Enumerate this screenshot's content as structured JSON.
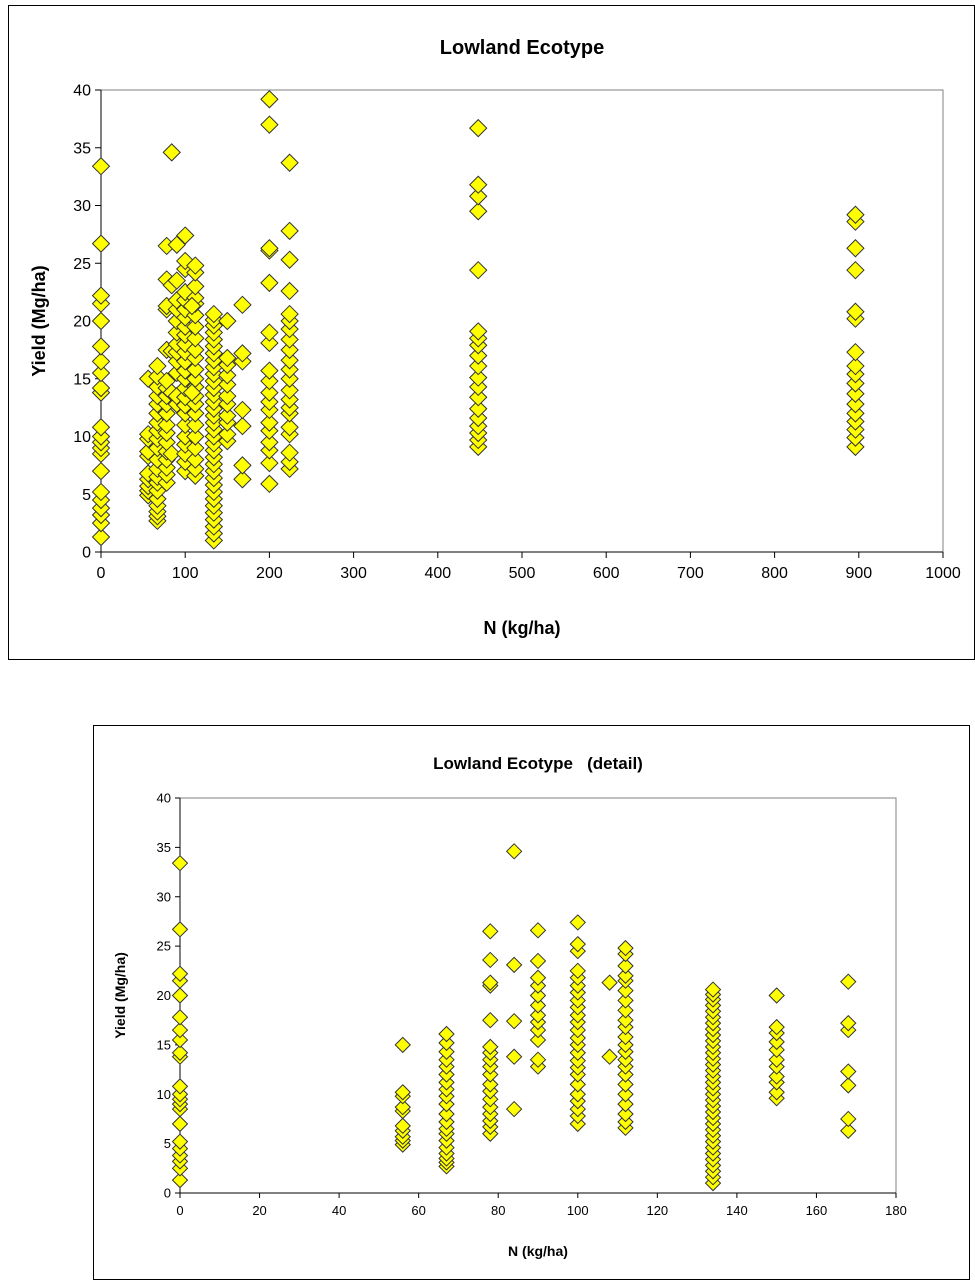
{
  "chart_data": [
    {
      "type": "scatter",
      "title": "Lowland Ecotype",
      "xlabel": "N (kg/ha)",
      "ylabel": "Yield (Mg/ha)",
      "xlim": [
        0,
        1000
      ],
      "ylim": [
        0,
        40
      ],
      "xticks": [
        0,
        100,
        200,
        300,
        400,
        500,
        600,
        700,
        800,
        900,
        1000
      ],
      "yticks": [
        0,
        5,
        10,
        15,
        20,
        25,
        30,
        35,
        40
      ],
      "grid": false,
      "legend": "none",
      "marker_color": "#ffff00",
      "marker_edge": "#333333",
      "groups": [
        {
          "x": 0,
          "y": [
            1.3,
            2.5,
            3.2,
            3.8,
            4.5,
            5.2,
            7.0,
            8.5,
            9.0,
            9.5,
            10.0,
            10.8,
            13.8,
            14.2,
            15.5,
            16.5,
            17.8,
            20.0,
            21.5,
            22.2,
            26.7,
            33.4
          ]
        },
        {
          "x": 56,
          "y": [
            4.9,
            5.3,
            5.7,
            6.3,
            6.8,
            8.3,
            8.7,
            9.8,
            10.2,
            15.0
          ]
        },
        {
          "x": 67,
          "y": [
            2.7,
            3.1,
            3.5,
            4.0,
            4.6,
            5.3,
            6.0,
            6.5,
            7.2,
            8.0,
            9.0,
            9.8,
            10.5,
            11.2,
            12.0,
            12.8,
            13.5,
            14.3,
            15.2,
            16.1
          ]
        },
        {
          "x": 78,
          "y": [
            6.0,
            6.7,
            7.3,
            8.0,
            8.7,
            9.5,
            10.3,
            11.0,
            12.0,
            12.8,
            13.5,
            14.2,
            14.8,
            17.5,
            21.0,
            21.3,
            23.6,
            26.5
          ]
        },
        {
          "x": 84,
          "y": [
            8.5,
            13.8,
            17.4,
            23.1,
            34.6
          ]
        },
        {
          "x": 90,
          "y": [
            12.8,
            13.5,
            15.5,
            16.5,
            17.3,
            18.0,
            19.0,
            20.0,
            21.0,
            21.8,
            23.5,
            26.6
          ]
        },
        {
          "x": 100,
          "y": [
            7.0,
            7.8,
            8.5,
            9.3,
            10.0,
            11.0,
            12.0,
            12.7,
            13.4,
            14.2,
            15.0,
            15.7,
            16.5,
            17.3,
            18.0,
            18.8,
            19.5,
            20.3,
            21.0,
            21.8,
            22.5,
            24.5,
            25.2,
            27.4
          ]
        },
        {
          "x": 112,
          "y": [
            6.6,
            7.2,
            8.0,
            9.0,
            10.0,
            11.0,
            12.0,
            12.8,
            13.5,
            14.3,
            15.0,
            15.8,
            16.8,
            17.5,
            18.5,
            19.5,
            20.5,
            21.5,
            22.0,
            23.0,
            24.2,
            24.8
          ]
        },
        {
          "x": 108,
          "y": [
            13.8,
            21.3
          ]
        },
        {
          "x": 134,
          "y": [
            1.0,
            1.6,
            2.2,
            2.8,
            3.4,
            4.0,
            4.6,
            5.2,
            5.8,
            6.4,
            7.0,
            7.6,
            8.2,
            8.8,
            9.4,
            10.0,
            10.6,
            11.2,
            11.8,
            12.4,
            13.0,
            13.6,
            14.2,
            14.8,
            15.4,
            16.0,
            16.6,
            17.2,
            17.8,
            18.4,
            19.0,
            19.6,
            20.1,
            20.6
          ]
        },
        {
          "x": 150,
          "y": [
            9.6,
            10.2,
            11.2,
            11.8,
            12.8,
            13.5,
            14.5,
            15.3,
            16.2,
            16.8,
            20.0
          ]
        },
        {
          "x": 168,
          "y": [
            6.3,
            7.5,
            10.9,
            12.3,
            16.5,
            17.2,
            21.4
          ]
        },
        {
          "x": 200,
          "y": [
            5.9,
            7.7,
            8.8,
            9.5,
            10.5,
            11.2,
            12.3,
            13.0,
            13.8,
            14.8,
            15.7,
            18.1,
            19.0,
            23.3,
            26.1,
            26.3,
            37.0,
            39.2
          ]
        },
        {
          "x": 224,
          "y": [
            7.2,
            7.8,
            8.6,
            10.2,
            10.8,
            12.0,
            12.5,
            13.2,
            14.0,
            15.0,
            15.8,
            16.6,
            17.5,
            18.4,
            19.3,
            20.0,
            20.6,
            22.6,
            25.3,
            27.8,
            33.7
          ]
        },
        {
          "x": 448,
          "y": [
            9.1,
            9.7,
            10.3,
            10.9,
            11.6,
            12.4,
            13.4,
            14.3,
            15.1,
            16.1,
            17.0,
            17.9,
            18.5,
            19.1,
            24.4,
            29.5,
            30.8,
            31.8,
            36.7
          ]
        },
        {
          "x": 896,
          "y": [
            9.1,
            9.9,
            10.6,
            11.3,
            12.0,
            12.8,
            13.7,
            14.6,
            15.4,
            16.1,
            17.3,
            20.2,
            20.8,
            24.4,
            26.3,
            28.6,
            29.2
          ]
        }
      ]
    },
    {
      "type": "scatter",
      "title": "Lowland Ecotype   (detail)",
      "xlabel": "N (kg/ha)",
      "ylabel": "Yield (Mg/ha)",
      "xlim": [
        0,
        180
      ],
      "ylim": [
        0,
        40
      ],
      "xticks": [
        0,
        20,
        40,
        60,
        80,
        100,
        120,
        140,
        160,
        180
      ],
      "yticks": [
        0,
        5,
        10,
        15,
        20,
        25,
        30,
        35,
        40
      ],
      "grid": false,
      "legend": "none",
      "marker_color": "#ffff00",
      "marker_edge": "#333333",
      "groups": [
        {
          "x": 0,
          "y": [
            1.3,
            2.5,
            3.2,
            3.8,
            4.5,
            5.2,
            7.0,
            8.5,
            9.0,
            9.5,
            10.0,
            10.8,
            13.8,
            14.2,
            15.5,
            16.5,
            17.8,
            20.0,
            21.5,
            22.2,
            26.7,
            33.4
          ]
        },
        {
          "x": 56,
          "y": [
            4.9,
            5.3,
            5.7,
            6.3,
            6.8,
            8.3,
            8.7,
            9.8,
            10.2,
            15.0
          ]
        },
        {
          "x": 67,
          "y": [
            2.7,
            3.1,
            3.5,
            4.0,
            4.6,
            5.3,
            6.0,
            6.5,
            7.2,
            8.0,
            9.0,
            9.8,
            10.5,
            11.2,
            12.0,
            12.8,
            13.5,
            14.3,
            15.2,
            16.1
          ]
        },
        {
          "x": 78,
          "y": [
            6.0,
            6.7,
            7.3,
            8.0,
            8.7,
            9.5,
            10.3,
            11.0,
            12.0,
            12.8,
            13.5,
            14.2,
            14.8,
            17.5,
            21.0,
            21.3,
            23.6,
            26.5
          ]
        },
        {
          "x": 84,
          "y": [
            8.5,
            13.8,
            17.4,
            23.1,
            34.6
          ]
        },
        {
          "x": 90,
          "y": [
            12.8,
            13.5,
            15.5,
            16.5,
            17.3,
            18.0,
            19.0,
            20.0,
            21.0,
            21.8,
            23.5,
            26.6
          ]
        },
        {
          "x": 100,
          "y": [
            7.0,
            7.8,
            8.5,
            9.3,
            10.0,
            11.0,
            12.0,
            12.7,
            13.4,
            14.2,
            15.0,
            15.7,
            16.5,
            17.3,
            18.0,
            18.8,
            19.5,
            20.3,
            21.0,
            21.8,
            22.5,
            24.5,
            25.2,
            27.4
          ]
        },
        {
          "x": 108,
          "y": [
            13.8,
            21.3
          ]
        },
        {
          "x": 112,
          "y": [
            6.6,
            7.2,
            8.0,
            9.0,
            10.0,
            11.0,
            12.0,
            12.8,
            13.5,
            14.3,
            15.0,
            15.8,
            16.8,
            17.5,
            18.5,
            19.5,
            20.5,
            21.5,
            22.0,
            23.0,
            24.2,
            24.8
          ]
        },
        {
          "x": 134,
          "y": [
            1.0,
            1.6,
            2.2,
            2.8,
            3.4,
            4.0,
            4.6,
            5.2,
            5.8,
            6.4,
            7.0,
            7.6,
            8.2,
            8.8,
            9.4,
            10.0,
            10.6,
            11.2,
            11.8,
            12.4,
            13.0,
            13.6,
            14.2,
            14.8,
            15.4,
            16.0,
            16.6,
            17.2,
            17.8,
            18.4,
            19.0,
            19.6,
            20.1,
            20.6
          ]
        },
        {
          "x": 150,
          "y": [
            9.6,
            10.2,
            11.2,
            11.8,
            12.8,
            13.5,
            14.5,
            15.3,
            16.2,
            16.8,
            20.0
          ]
        },
        {
          "x": 168,
          "y": [
            6.3,
            7.5,
            10.9,
            12.3,
            16.5,
            17.2,
            21.4
          ]
        }
      ]
    }
  ]
}
